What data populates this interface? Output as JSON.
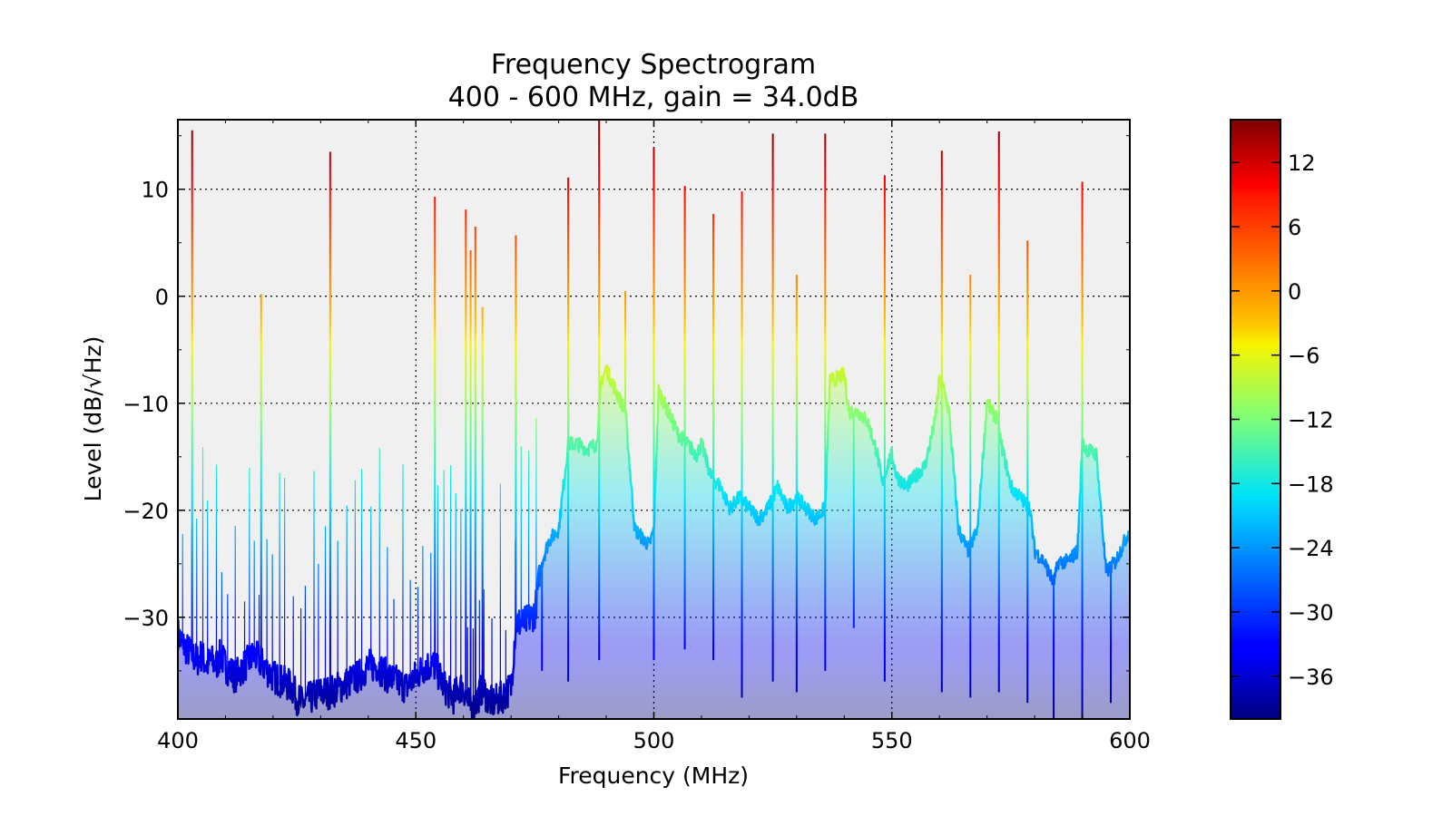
{
  "chart_data": {
    "type": "line",
    "title": "Frequency Spectrogram",
    "subtitle": "400 - 600 MHz, gain = 34.0dB",
    "xlabel": "Frequency (MHz)",
    "ylabel": "Level (dB/√Hz)",
    "xlim": [
      400,
      600
    ],
    "ylim": [
      -39.5,
      16.5
    ],
    "x_ticks": [
      400,
      450,
      500,
      550,
      600
    ],
    "y_ticks": [
      -30,
      -20,
      -10,
      0,
      10
    ],
    "x_tick_labels": [
      "400",
      "450",
      "500",
      "550",
      "600"
    ],
    "y_tick_labels": [
      "−30",
      "−20",
      "−10",
      "0",
      "10"
    ],
    "grid": true,
    "grid_style": "dotted",
    "background_color": "#f0f0f0",
    "colormap": "jet",
    "series": [
      {
        "x": [
          400,
          401,
          402,
          403,
          404,
          405,
          406,
          407,
          408,
          409,
          410,
          412,
          414,
          416,
          418,
          420,
          422,
          424,
          425,
          426,
          428,
          430,
          432,
          434,
          436,
          438,
          440,
          442,
          444,
          446,
          448,
          450,
          452,
          454,
          456,
          458,
          459,
          460,
          461,
          462,
          463,
          464,
          465,
          466,
          468,
          470,
          471,
          473,
          475,
          476.5,
          478,
          480,
          482,
          484,
          486,
          488,
          489,
          490,
          492,
          494,
          496,
          498,
          499,
          500,
          501,
          502,
          504,
          505,
          507,
          509,
          510,
          512,
          514,
          516,
          518,
          520,
          522,
          524,
          526,
          528,
          530,
          532,
          534,
          536,
          537,
          538,
          540,
          541,
          543,
          545,
          547,
          548,
          549,
          550,
          551,
          553,
          555,
          557,
          559,
          560,
          561,
          562,
          564,
          566,
          568,
          570,
          571,
          572,
          573,
          575,
          577,
          579,
          580,
          582,
          583,
          584,
          585,
          587,
          589,
          590,
          591,
          593,
          595,
          597,
          598,
          599,
          600
        ],
        "y": [
          -32,
          -33,
          -33.5,
          -34,
          -34.5,
          -34,
          -35,
          -34.5,
          -35,
          -34,
          -35,
          -36,
          -35,
          -34,
          -35,
          -36,
          -36.5,
          -37,
          -38,
          -38.5,
          -38,
          -37.5,
          -37.5,
          -37,
          -36.5,
          -36,
          -35,
          -35,
          -36,
          -36.5,
          -37,
          -36,
          -35,
          -35,
          -37,
          -38,
          -37,
          -37,
          -38.5,
          -39,
          -38,
          -37,
          -38,
          -38.5,
          -38,
          -37,
          -31,
          -31,
          -30,
          -25,
          -23,
          -22,
          -14,
          -14,
          -14.5,
          -14,
          -8,
          -7,
          -9,
          -11,
          -22,
          -23,
          -23.5,
          -22,
          -9,
          -10,
          -12,
          -13,
          -14,
          -15,
          -14,
          -17,
          -18,
          -20,
          -19,
          -20,
          -21,
          -20,
          -18,
          -20,
          -19,
          -20,
          -21,
          -20,
          -8,
          -8,
          -7.5,
          -11,
          -11,
          -12,
          -15,
          -18,
          -16,
          -15,
          -17,
          -18,
          -17,
          -16,
          -12,
          -8,
          -9,
          -11,
          -22,
          -24,
          -22,
          -10,
          -11,
          -11.5,
          -14,
          -18,
          -19,
          -20,
          -24,
          -25,
          -26,
          -27,
          -25,
          -25,
          -24,
          -14,
          -14.5,
          -15,
          -26,
          -25,
          -24,
          -23,
          -22
        ],
        "peaks": [
          {
            "x": 403,
            "y": 15.5
          },
          {
            "x": 417.5,
            "y": 0.2
          },
          {
            "x": 432,
            "y": 13.5
          },
          {
            "x": 454,
            "y": 9.3
          },
          {
            "x": 460.5,
            "y": 8.1
          },
          {
            "x": 461.5,
            "y": 4.3
          },
          {
            "x": 462.5,
            "y": 6.5
          },
          {
            "x": 464,
            "y": -1
          },
          {
            "x": 471,
            "y": 5.7
          },
          {
            "x": 482,
            "y": 11.1
          },
          {
            "x": 488.5,
            "y": 16.5
          },
          {
            "x": 494,
            "y": 0.5
          },
          {
            "x": 500,
            "y": 13.9
          },
          {
            "x": 506.5,
            "y": 10.3
          },
          {
            "x": 512.5,
            "y": 7.7
          },
          {
            "x": 518.5,
            "y": 9.8
          },
          {
            "x": 525,
            "y": 15.2
          },
          {
            "x": 530,
            "y": 2
          },
          {
            "x": 536,
            "y": 15.2
          },
          {
            "x": 548.5,
            "y": 11.3
          },
          {
            "x": 560.5,
            "y": 13.6
          },
          {
            "x": 566.5,
            "y": 2
          },
          {
            "x": 572.5,
            "y": 15.4
          },
          {
            "x": 578.5,
            "y": 5.2
          },
          {
            "x": 590,
            "y": 10.7
          }
        ],
        "dips": [
          {
            "x": 476.5,
            "y": -35
          },
          {
            "x": 482,
            "y": -36
          },
          {
            "x": 488.5,
            "y": -34
          },
          {
            "x": 500,
            "y": -34
          },
          {
            "x": 506.5,
            "y": -33
          },
          {
            "x": 512.5,
            "y": -34
          },
          {
            "x": 518.5,
            "y": -37.5
          },
          {
            "x": 525,
            "y": -36
          },
          {
            "x": 530,
            "y": -37
          },
          {
            "x": 536,
            "y": -35
          },
          {
            "x": 542,
            "y": -31
          },
          {
            "x": 548.5,
            "y": -36
          },
          {
            "x": 560.5,
            "y": -37
          },
          {
            "x": 566.5,
            "y": -37.5
          },
          {
            "x": 572.5,
            "y": -37
          },
          {
            "x": 578.5,
            "y": -38
          },
          {
            "x": 584,
            "y": -39.5
          },
          {
            "x": 590,
            "y": -39.5
          },
          {
            "x": 596,
            "y": -38
          }
        ]
      }
    ],
    "colorbar": {
      "range": [
        -40,
        16
      ],
      "ticks": [
        -36,
        -30,
        -24,
        -18,
        -12,
        -6,
        0,
        6,
        12
      ],
      "tick_labels": [
        "−36",
        "−30",
        "−24",
        "−18",
        "−12",
        "−6",
        "0",
        "6",
        "12"
      ]
    }
  }
}
